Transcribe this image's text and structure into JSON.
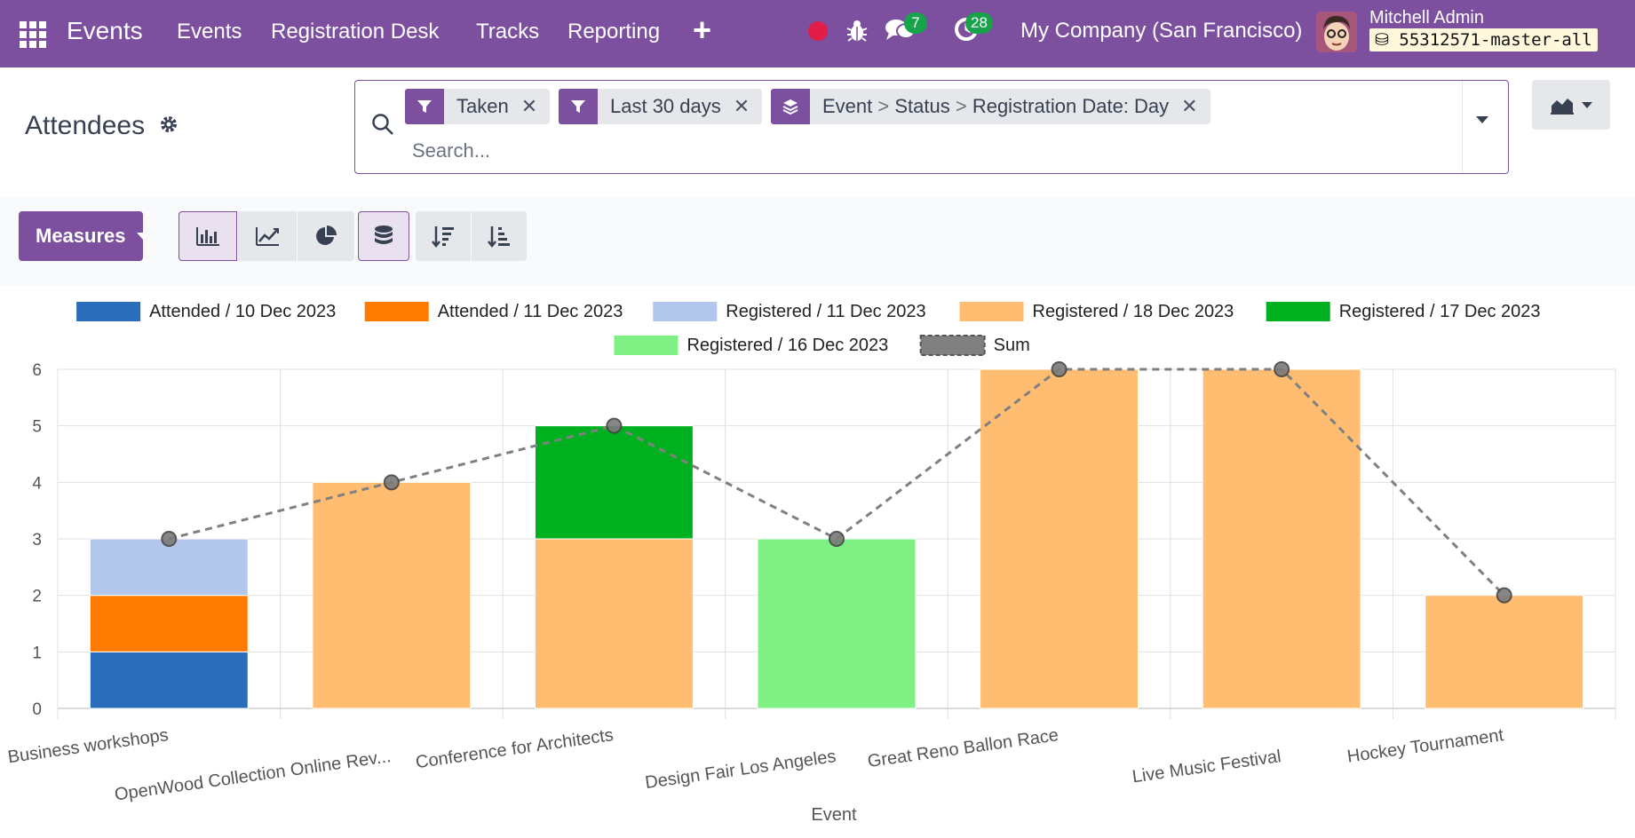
{
  "topbar": {
    "app_name": "Events",
    "nav": [
      "Events",
      "Registration Desk",
      "Tracks",
      "Reporting"
    ],
    "plus_icon": "plus-icon",
    "messages_count": "7",
    "activities_count": "28",
    "company": "My Company (San Francisco)",
    "user_name": "Mitchell Admin",
    "database": "55312571-master-all",
    "brand_color": "#7c4f9f"
  },
  "control_panel": {
    "title": "Attendees",
    "search": {
      "placeholder": "Search...",
      "facets": [
        {
          "type": "filter",
          "label": "Taken"
        },
        {
          "type": "filter",
          "label": "Last 30 days"
        },
        {
          "type": "groupby",
          "parts": [
            "Event",
            "Status",
            "Registration Date: Day"
          ]
        }
      ]
    },
    "measures_label": "Measures"
  },
  "chart_data": {
    "type": "bar",
    "stacked": true,
    "categories": [
      "Business workshops",
      "OpenWood Collection Online Rev...",
      "Conference for Architects",
      "Design Fair Los Angeles",
      "Great Reno Ballon Race",
      "Live Music Festival",
      "Hockey Tournament"
    ],
    "series": [
      {
        "name": "Attended / 10 Dec 2023",
        "color": "#2a6ebb",
        "values": [
          1,
          0,
          0,
          0,
          0,
          0,
          0
        ]
      },
      {
        "name": "Attended / 11 Dec 2023",
        "color": "#ff7a00",
        "values": [
          1,
          0,
          0,
          0,
          0,
          0,
          0
        ]
      },
      {
        "name": "Registered / 11 Dec 2023",
        "color": "#b3c6ec",
        "values": [
          1,
          0,
          0,
          0,
          0,
          0,
          0
        ]
      },
      {
        "name": "Registered / 18 Dec 2023",
        "color": "#ffbd72",
        "values": [
          0,
          4,
          3,
          0,
          6,
          6,
          2
        ]
      },
      {
        "name": "Registered / 17 Dec 2023",
        "color": "#00b11f",
        "values": [
          0,
          0,
          2,
          0,
          0,
          0,
          0
        ]
      },
      {
        "name": "Registered / 16 Dec 2023",
        "color": "#7ff084",
        "values": [
          0,
          0,
          0,
          3,
          0,
          0,
          0
        ]
      }
    ],
    "sum_line": {
      "name": "Sum",
      "color": "#808080",
      "values": [
        3,
        4,
        5,
        3,
        6,
        6,
        2
      ]
    },
    "xlabel": "Event",
    "ylabel": "",
    "ylim": [
      0,
      6
    ],
    "yticks": [
      0,
      1,
      2,
      3,
      4,
      5,
      6
    ],
    "grid": true,
    "legend_position": "top"
  }
}
